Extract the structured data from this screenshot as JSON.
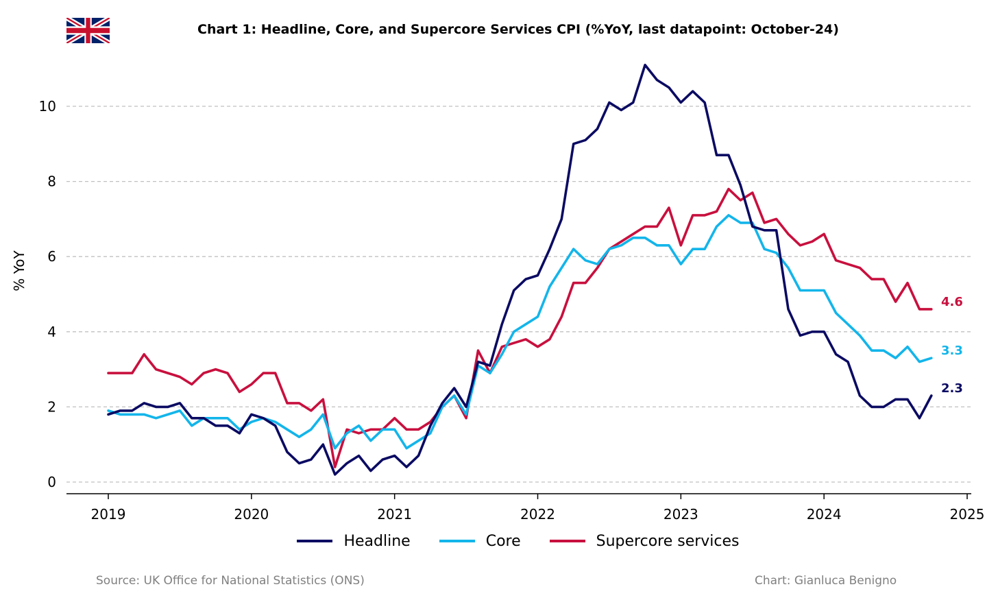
{
  "chart_data": {
    "type": "line",
    "title": "Chart 1: Headline, Core, and Supercore Services CPI (%YoY, last datapoint: October-24)",
    "ylabel": "% YoY",
    "xlabel": "",
    "xlim": [
      2019,
      2025
    ],
    "ylim": [
      -0.3,
      11.3
    ],
    "yticks": [
      0,
      2,
      4,
      6,
      8,
      10
    ],
    "xticks": [
      2019,
      2020,
      2021,
      2022,
      2023,
      2024,
      2025
    ],
    "grid": "horizontal dashed",
    "legend": "bottom-center",
    "start": "2019-01",
    "frequency": "monthly",
    "series": [
      {
        "name": "Headline",
        "color": "#0B0B63",
        "end_label": "2.3",
        "values": [
          1.8,
          1.9,
          1.9,
          2.1,
          2.0,
          2.0,
          2.1,
          1.7,
          1.7,
          1.5,
          1.5,
          1.3,
          1.8,
          1.7,
          1.5,
          0.8,
          0.5,
          0.6,
          1.0,
          0.2,
          0.5,
          0.7,
          0.3,
          0.6,
          0.7,
          0.4,
          0.7,
          1.5,
          2.1,
          2.5,
          2.0,
          3.2,
          3.1,
          4.2,
          5.1,
          5.4,
          5.5,
          6.2,
          7.0,
          9.0,
          9.1,
          9.4,
          10.1,
          9.9,
          10.1,
          11.1,
          10.7,
          10.5,
          10.1,
          10.4,
          10.1,
          8.7,
          8.7,
          7.9,
          6.8,
          6.7,
          6.7,
          4.6,
          3.9,
          4.0,
          4.0,
          3.4,
          3.2,
          2.3,
          2.0,
          2.0,
          2.2,
          2.2,
          1.7,
          2.3
        ]
      },
      {
        "name": "Core",
        "color": "#13B5EA",
        "end_label": "3.3",
        "values": [
          1.9,
          1.8,
          1.8,
          1.8,
          1.7,
          1.8,
          1.9,
          1.5,
          1.7,
          1.7,
          1.7,
          1.4,
          1.6,
          1.7,
          1.6,
          1.4,
          1.2,
          1.4,
          1.8,
          0.9,
          1.3,
          1.5,
          1.1,
          1.4,
          1.4,
          0.9,
          1.1,
          1.3,
          2.0,
          2.3,
          1.8,
          3.1,
          2.9,
          3.4,
          4.0,
          4.2,
          4.4,
          5.2,
          5.7,
          6.2,
          5.9,
          5.8,
          6.2,
          6.3,
          6.5,
          6.5,
          6.3,
          6.3,
          5.8,
          6.2,
          6.2,
          6.8,
          7.1,
          6.9,
          6.9,
          6.2,
          6.1,
          5.7,
          5.1,
          5.1,
          5.1,
          4.5,
          4.2,
          3.9,
          3.5,
          3.5,
          3.3,
          3.6,
          3.2,
          3.3
        ]
      },
      {
        "name": "Supercore services",
        "color": "#C8103E",
        "end_label": "4.6",
        "values": [
          2.9,
          2.9,
          2.9,
          3.4,
          3.0,
          2.9,
          2.8,
          2.6,
          2.9,
          3.0,
          2.9,
          2.4,
          2.6,
          2.9,
          2.9,
          2.1,
          2.1,
          1.9,
          2.2,
          0.4,
          1.4,
          1.3,
          1.4,
          1.4,
          1.7,
          1.4,
          1.4,
          1.6,
          2.0,
          2.3,
          1.7,
          3.5,
          2.9,
          3.6,
          3.7,
          3.8,
          3.6,
          3.8,
          4.4,
          5.3,
          5.3,
          5.7,
          6.2,
          6.4,
          6.6,
          6.8,
          6.8,
          7.3,
          6.3,
          7.1,
          7.1,
          7.2,
          7.8,
          7.5,
          7.7,
          6.9,
          7.0,
          6.6,
          6.3,
          6.4,
          6.6,
          5.9,
          5.8,
          5.7,
          5.4,
          5.4,
          4.8,
          5.3,
          4.6,
          4.6
        ]
      }
    ]
  },
  "flag_icon": "uk-flag-icon",
  "footer": {
    "source": "Source: UK Office for National Statistics (ONS)",
    "credit": "Chart: Gianluca Benigno"
  }
}
